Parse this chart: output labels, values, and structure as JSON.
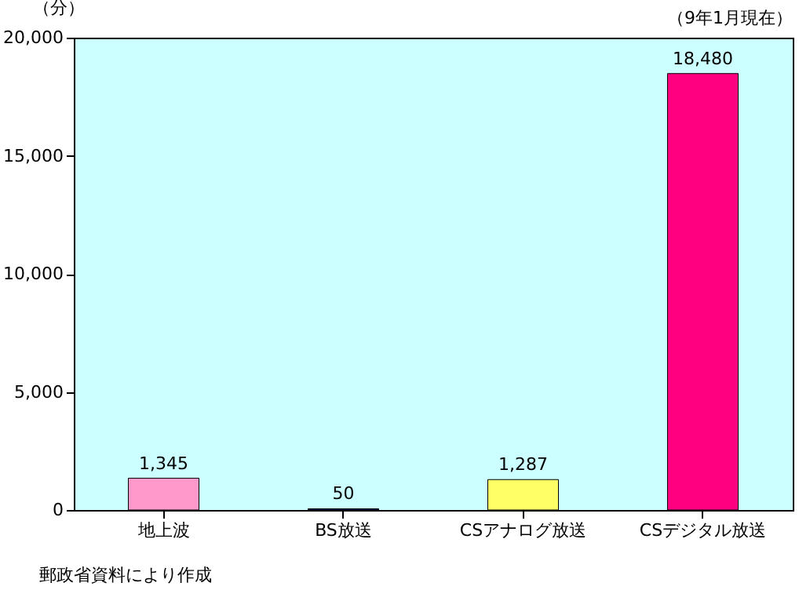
{
  "chart_data": {
    "type": "bar",
    "ylabel": "（分）",
    "categories": [
      "地上波",
      "BS放送",
      "CSアナログ放送",
      "CSデジタル放送"
    ],
    "values": [
      1345,
      50,
      1287,
      18480
    ],
    "value_labels": [
      "1,345",
      "50",
      "1,287",
      "18,480"
    ],
    "colors": [
      "#ff99cc",
      "#000080",
      "#ffff66",
      "#ff0080"
    ],
    "ylim": [
      0,
      20000
    ],
    "yticks": [
      0,
      {
        "value": 5000,
        "label": "5,000"
      },
      {
        "value": 10000,
        "label": "10,000"
      },
      {
        "value": 15000,
        "label": "15,000"
      },
      {
        "value": 20000,
        "label": "20,000"
      }
    ],
    "grid": false,
    "annotations": [
      "（9年1月現在）",
      "郵政省資料により作成"
    ]
  }
}
